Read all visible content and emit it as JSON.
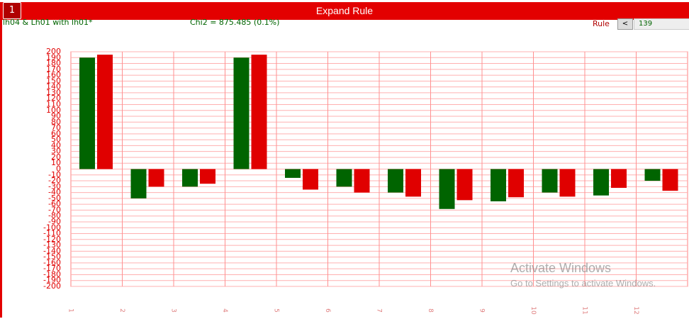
{
  "header": {
    "button": "1",
    "title": "Expand Rule",
    "rule_name": "lh04 & Lh01 with lh01*",
    "stat": "Chi2 = 875.485 (0.1%)",
    "rule_label": "Rule",
    "prev": "<",
    "rule_number": "139"
  },
  "chart_data": {
    "type": "bar",
    "categories": [
      "1",
      "2",
      "3",
      "4",
      "5",
      "6",
      "7",
      "8",
      "9",
      "10",
      "11",
      "12"
    ],
    "series": [
      {
        "color": "#006400",
        "values": [
          190,
          -50,
          -30,
          190,
          -15,
          -30,
          -40,
          -68,
          -55,
          -40,
          -45,
          -20
        ]
      },
      {
        "color": "#e00000",
        "values": [
          195,
          -30,
          -25,
          195,
          -35,
          -40,
          -47,
          -53,
          -48,
          -47,
          -32,
          -37
        ]
      }
    ],
    "ylim": [
      -200,
      200
    ],
    "yticks": [
      -200,
      -190,
      -180,
      -170,
      -160,
      -150,
      -140,
      -130,
      -120,
      -110,
      -100,
      -90,
      -80,
      -70,
      -60,
      -50,
      -40,
      -30,
      -20,
      -10,
      0,
      10,
      20,
      30,
      40,
      50,
      60,
      70,
      80,
      90,
      100,
      110,
      120,
      130,
      140,
      150,
      160,
      170,
      180,
      190,
      200
    ],
    "grid": true
  },
  "watermark": {
    "title": "Activate Windows",
    "subtitle": "Go to Settings to activate Windows."
  }
}
